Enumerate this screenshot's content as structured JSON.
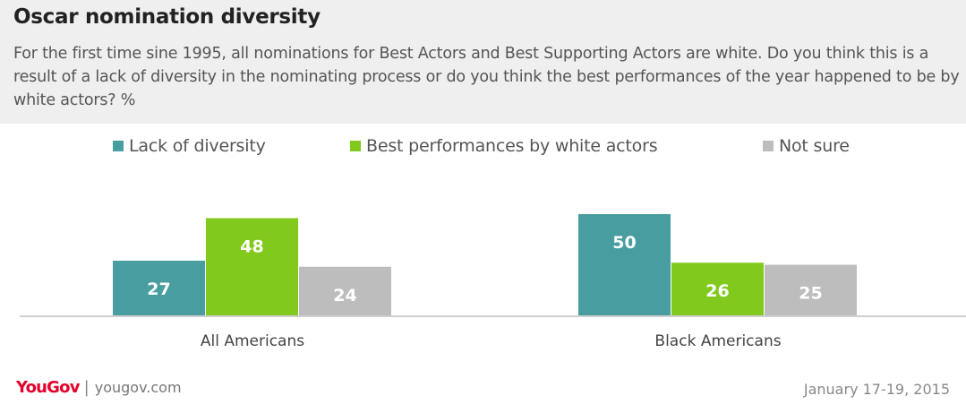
{
  "header": {
    "title": "Oscar nomination diversity",
    "subtitle": "For the first time sine 1995, all nominations for Best Actors and Best Supporting Actors are white. Do you think this is a result of a lack of diversity in the nominating process or do you think the best performances of the year happened to be by white actors? %"
  },
  "chart_data": {
    "type": "bar",
    "title": "Oscar nomination diversity",
    "categories": [
      "All Americans",
      "Black Americans"
    ],
    "series": [
      {
        "name": "Lack of diversity",
        "values": [
          27,
          50
        ],
        "color": "#479d9f"
      },
      {
        "name": "Best performances by white actors",
        "values": [
          48,
          26
        ],
        "color": "#82c91e"
      },
      {
        "name": "Not sure",
        "values": [
          24,
          25
        ],
        "color": "#bdbdbd"
      }
    ],
    "xlabel": "",
    "ylabel": "",
    "ylim": [
      0,
      50
    ],
    "grid": false,
    "legend": "top"
  },
  "footer": {
    "logo": "YouGov",
    "separator": "|",
    "url": "yougov.com",
    "date": "January 17-19, 2015"
  }
}
